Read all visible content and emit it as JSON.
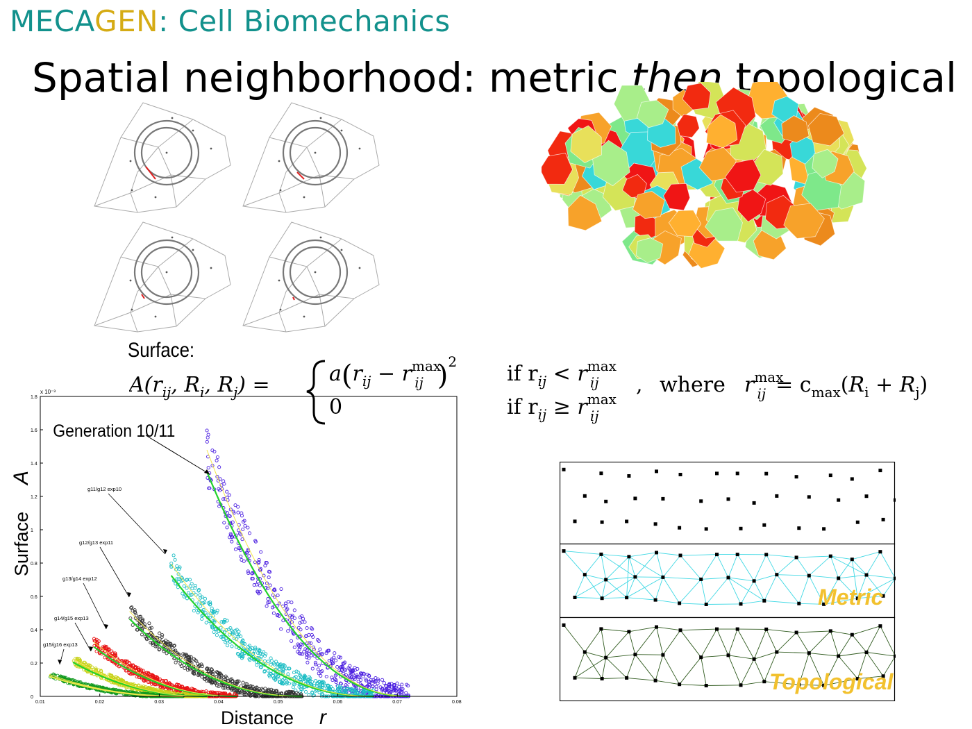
{
  "header": {
    "part1": "MECA",
    "part2": "GEN",
    "part3": ": Cell Biomechanics",
    "colors": {
      "teal": "#12918c",
      "gold": "#d5ab14"
    }
  },
  "title": {
    "pre": "Spatial neighborhood: metric ",
    "emph": "then",
    "post": " topological"
  },
  "formula": {
    "label": "Surface:",
    "lhs": "A(r",
    "case1_if": "if r",
    "case2_if": "if r",
    "zero": "0",
    "where": "where",
    "rhs": "= c",
    "sub_ij": "ij",
    "sup_max": "max",
    "sub_max": "max",
    "coef": "a",
    "exp": "2"
  },
  "chart_data": {
    "type": "scatter",
    "xlabel": "Distance",
    "xlabel_symbol": "r",
    "ylabel": "Surface",
    "ylabel_symbol": "A",
    "xlim": [
      0.01,
      0.08
    ],
    "ylim": [
      0,
      1.8
    ],
    "y_multiplier": "x 10⁻³",
    "x_ticks": [
      "0.01",
      "0.02",
      "0.03",
      "0.04",
      "0.05",
      "0.06",
      "0.07",
      "0.08"
    ],
    "y_ticks": [
      "0",
      "0.2",
      "0.4",
      "0.6",
      "0.8",
      "1",
      "1.2",
      "1.4",
      "1.6",
      "1.8"
    ],
    "annotation_main": "Generation 10/11",
    "series": [
      {
        "name": "g11/g12 exp10",
        "color": "#4b1fe0",
        "x_range": [
          0.038,
          0.072
        ],
        "y_start": 1.45,
        "fit_color": "#22d22a"
      },
      {
        "name": "g12/g13 exp11",
        "color": "#19bcc3",
        "x_range": [
          0.032,
          0.066
        ],
        "y_start": 0.78,
        "fit_color": "#22d22a"
      },
      {
        "name": "g13/g14 exp12",
        "color": "#333333",
        "x_range": [
          0.025,
          0.054
        ],
        "y_start": 0.5,
        "fit_color": "#22d22a"
      },
      {
        "name": "g14/g15 exp13",
        "color": "#e81515",
        "x_range": [
          0.019,
          0.043
        ],
        "y_start": 0.32,
        "fit_color": "#22d22a"
      },
      {
        "name": "g15/g16 exp13",
        "color": "#c8d21a",
        "x_range": [
          0.0155,
          0.038
        ],
        "y_start": 0.22,
        "fit_color": "#22d22a"
      },
      {
        "name": "",
        "color": "#129a20",
        "x_range": [
          0.0115,
          0.034
        ],
        "y_start": 0.13,
        "fit_color": "#e8e84a"
      }
    ]
  },
  "grid_panel": {
    "metric_label": "Metric",
    "topological_label": "Topological",
    "metric_color": "#3ed8e4",
    "topo_color": "#2f5a1e"
  }
}
